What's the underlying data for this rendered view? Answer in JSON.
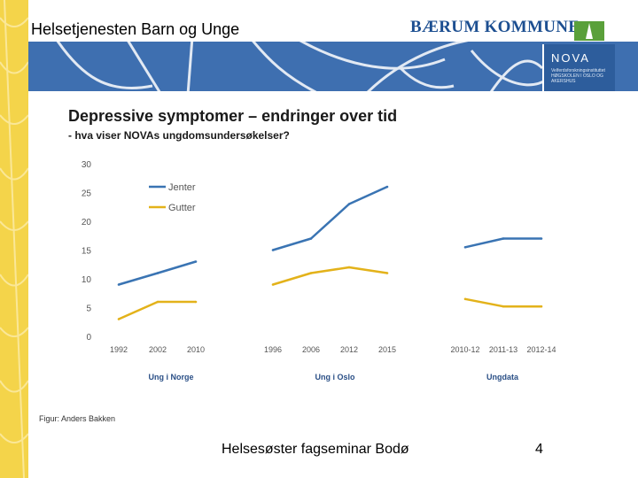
{
  "header": {
    "title": "Helsetjenesten Barn og Unge",
    "brand": "BÆRUM KOMMUNE",
    "nova_logo": "NOVA",
    "nova_subtext": "Velferdsforskningsinstituttet HØGSKOLEN I OSLO OG AKERSHUS"
  },
  "colors": {
    "header_band": "#3e6fb0",
    "left_band": "#f4d44a",
    "jenter": "#3a74b3",
    "gutter": "#e3b21a"
  },
  "chart_data": {
    "type": "line",
    "title": "Depressive symptomer – endringer over tid",
    "subtitle": "- hva viser NOVAs ungdomsundersøkelser?",
    "ylim": [
      0,
      30
    ],
    "yticks": [
      "0",
      "5",
      "10",
      "15",
      "20",
      "25",
      "30"
    ],
    "legend": {
      "placement": "top-left",
      "entries": [
        "Jenter",
        "Gutter"
      ]
    },
    "grid": false,
    "groups": [
      {
        "label": "Ung i Norge",
        "x": [
          "1992",
          "2002",
          "2010"
        ],
        "series": [
          {
            "name": "Jenter",
            "values": [
              9,
              11,
              13
            ]
          },
          {
            "name": "Gutter",
            "values": [
              3,
              6,
              6
            ]
          }
        ]
      },
      {
        "label": "Ung i Oslo",
        "x": [
          "1996",
          "2006",
          "2012",
          "2015"
        ],
        "series": [
          {
            "name": "Jenter",
            "values": [
              15,
              17,
              23,
              26
            ]
          },
          {
            "name": "Gutter",
            "values": [
              9,
              11,
              12,
              11
            ]
          }
        ]
      },
      {
        "label": "Ungdata",
        "x": [
          "2010-12",
          "2011-13",
          "2012-14"
        ],
        "series": [
          {
            "name": "Jenter",
            "values": [
              15.5,
              17,
              17
            ]
          },
          {
            "name": "Gutter",
            "values": [
              6.5,
              5.2,
              5.2
            ]
          }
        ]
      }
    ]
  },
  "figure_credit": "Figur: Anders Bakken",
  "footer": {
    "text": "Helsesøster fagseminar Bodø",
    "page_number": "4"
  }
}
